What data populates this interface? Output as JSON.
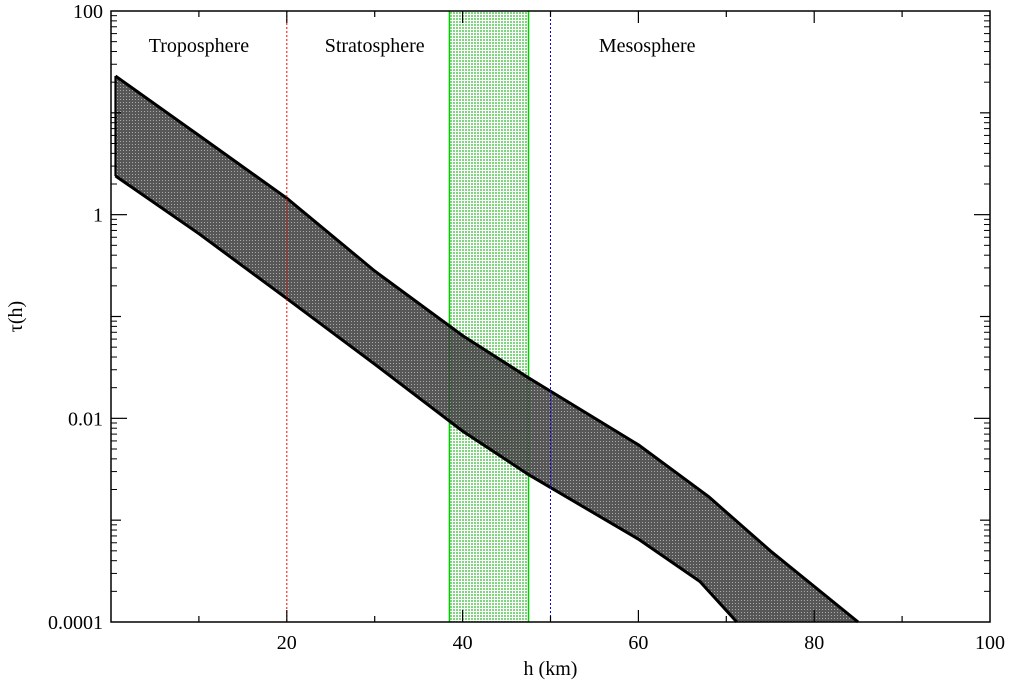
{
  "chart_data": {
    "type": "area",
    "xlabel": "h (km)",
    "ylabel": "τ(h)",
    "xlim": [
      0,
      100
    ],
    "ylim": [
      0.0001,
      100
    ],
    "yscale": "log",
    "grid": false,
    "x_ticks": [
      {
        "value": 20,
        "label": "20"
      },
      {
        "value": 40,
        "label": "40"
      },
      {
        "value": 60,
        "label": "60"
      },
      {
        "value": 80,
        "label": "80"
      },
      {
        "value": 100,
        "label": "100"
      }
    ],
    "y_ticks": [
      {
        "value": 100,
        "label": "100"
      },
      {
        "value": 1,
        "label": "1"
      },
      {
        "value": 0.01,
        "label": "0.01"
      },
      {
        "value": 0.0001,
        "label": "0.0001"
      }
    ],
    "region_labels": [
      {
        "text": "Troposphere",
        "x": 10
      },
      {
        "text": "Stratosphere",
        "x": 30
      },
      {
        "text": "Mesosphere",
        "x": 61
      }
    ],
    "vertical_lines": [
      {
        "x": 20,
        "color": "#ff0000",
        "style": "dotted"
      },
      {
        "x": 50,
        "color": "#0000ff",
        "style": "dotted"
      }
    ],
    "shaded_span": {
      "x0": 38.5,
      "x1": 47.5,
      "color": "#00cc00"
    },
    "band": {
      "color": "#000000",
      "upper": [
        [
          0.5,
          23
        ],
        [
          10,
          6
        ],
        [
          20,
          1.45
        ],
        [
          30,
          0.28
        ],
        [
          40,
          0.065
        ],
        [
          47.5,
          0.025
        ],
        [
          60,
          0.0055
        ],
        [
          68,
          0.0017
        ],
        [
          75,
          0.0005
        ],
        [
          85,
          0.0001
        ]
      ],
      "lower": [
        [
          0.5,
          2.4
        ],
        [
          10,
          0.65
        ],
        [
          20,
          0.15
        ],
        [
          30,
          0.034
        ],
        [
          40,
          0.0075
        ],
        [
          47.5,
          0.0028
        ],
        [
          60,
          0.00065
        ],
        [
          67,
          0.00025
        ],
        [
          71.2,
          0.0001
        ]
      ]
    }
  }
}
